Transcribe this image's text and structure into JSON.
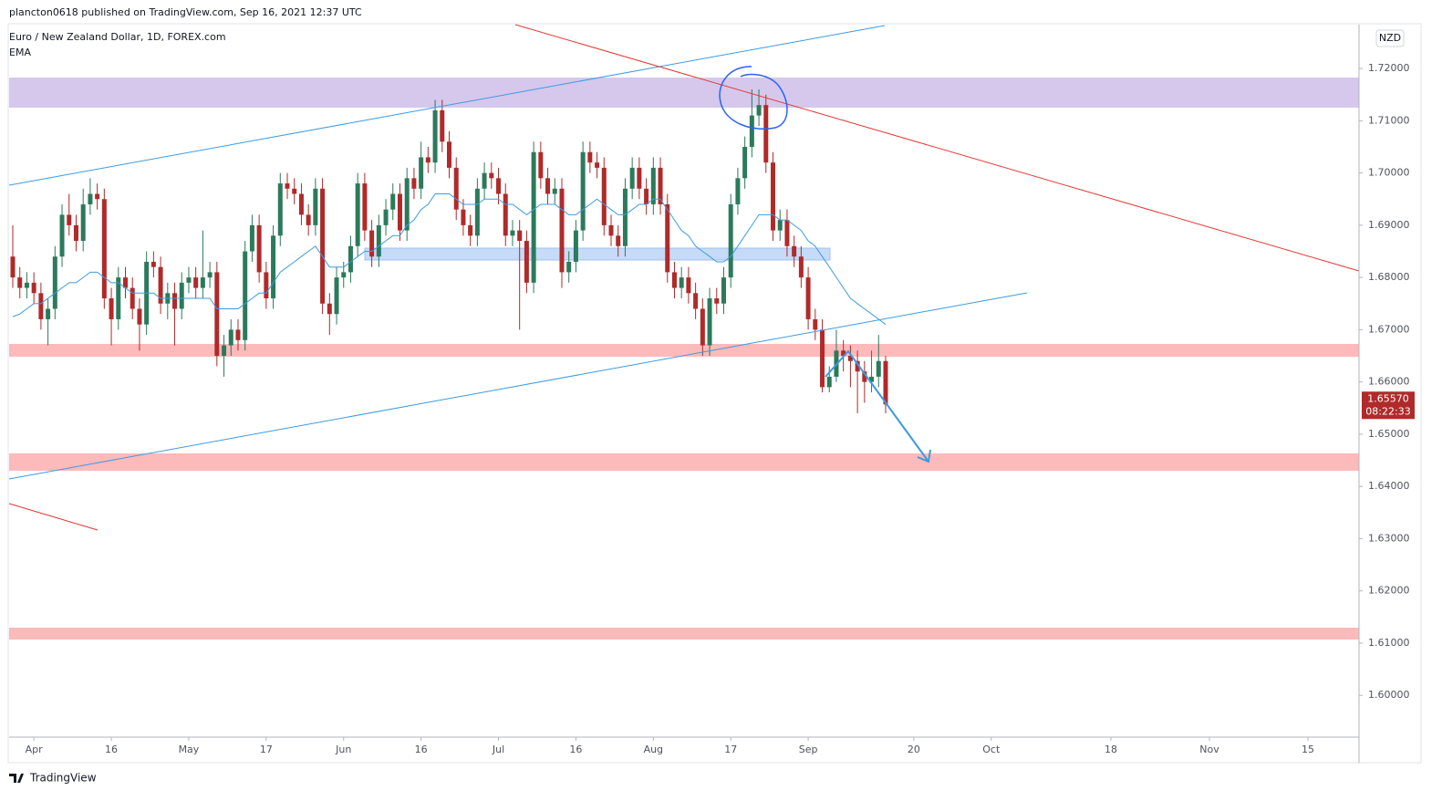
{
  "header": {
    "publisher": "plancton0618 published on TradingView.com, Sep 16, 2021 12:37 UTC"
  },
  "chart_data": {
    "type": "candlestick",
    "title": "Euro / New Zealand Dollar, 1D, FOREX.com",
    "indicator": "EMA",
    "currency": "NZD",
    "up_color": "#2b7a5c",
    "down_color": "#b02a2a",
    "ema_color": "#3d9be0",
    "open": [
      1.684,
      1.68,
      1.678,
      1.679,
      1.677,
      1.672,
      1.674,
      1.684,
      1.692,
      1.69,
      1.687,
      1.694,
      1.696,
      1.695,
      1.676,
      1.672,
      1.68,
      1.678,
      1.674,
      1.671,
      1.683,
      1.682,
      1.675,
      1.677,
      1.674,
      1.679,
      1.68,
      1.678,
      1.68,
      1.681,
      1.665,
      1.667,
      1.67,
      1.668,
      1.685,
      1.69,
      1.681,
      1.676,
      1.688,
      1.698,
      1.697,
      1.696,
      1.692,
      1.69,
      1.697,
      1.675,
      1.673,
      1.68,
      1.681,
      1.686,
      1.698,
      1.689,
      1.684,
      1.69,
      1.693,
      1.696,
      1.689,
      1.699,
      1.697,
      1.703,
      1.702,
      1.712,
      1.706,
      1.701,
      1.693,
      1.69,
      1.688,
      1.697,
      1.7,
      1.699,
      1.696,
      1.688,
      1.689,
      1.687,
      1.679,
      1.704,
      1.699,
      1.696,
      1.697,
      1.681,
      1.683,
      1.689,
      1.704,
      1.702,
      1.701,
      1.69,
      1.688,
      1.686,
      1.697,
      1.701,
      1.697,
      1.694,
      1.701,
      1.694,
      1.681,
      1.678,
      1.68,
      1.677,
      1.674,
      1.667,
      1.676,
      1.675,
      1.68,
      1.694,
      1.699,
      1.705,
      1.711,
      1.713,
      1.702,
      1.689,
      1.691,
      1.686,
      1.684,
      1.68,
      1.672,
      1.67,
      1.659,
      1.661,
      1.666,
      1.665,
      1.664,
      1.662,
      1.66,
      1.661,
      1.664
    ],
    "high": [
      1.69,
      1.682,
      1.681,
      1.681,
      1.679,
      1.676,
      1.686,
      1.694,
      1.696,
      1.692,
      1.697,
      1.699,
      1.698,
      1.697,
      1.678,
      1.682,
      1.682,
      1.68,
      1.676,
      1.685,
      1.685,
      1.684,
      1.679,
      1.679,
      1.681,
      1.682,
      1.682,
      1.689,
      1.683,
      1.683,
      1.669,
      1.672,
      1.672,
      1.687,
      1.692,
      1.692,
      1.683,
      1.69,
      1.7,
      1.7,
      1.699,
      1.698,
      1.694,
      1.699,
      1.699,
      1.677,
      1.682,
      1.683,
      1.688,
      1.7,
      1.7,
      1.691,
      1.692,
      1.695,
      1.698,
      1.698,
      1.701,
      1.701,
      1.706,
      1.705,
      1.714,
      1.714,
      1.708,
      1.703,
      1.695,
      1.692,
      1.699,
      1.702,
      1.702,
      1.701,
      1.698,
      1.691,
      1.691,
      1.689,
      1.706,
      1.706,
      1.701,
      1.699,
      1.699,
      1.685,
      1.691,
      1.706,
      1.706,
      1.704,
      1.703,
      1.692,
      1.69,
      1.699,
      1.703,
      1.703,
      1.699,
      1.703,
      1.703,
      1.696,
      1.683,
      1.682,
      1.682,
      1.679,
      1.676,
      1.678,
      1.678,
      1.682,
      1.696,
      1.701,
      1.707,
      1.716,
      1.716,
      1.715,
      1.704,
      1.693,
      1.693,
      1.688,
      1.686,
      1.682,
      1.674,
      1.672,
      1.663,
      1.67,
      1.668,
      1.667,
      1.666,
      1.664,
      1.666,
      1.669,
      1.665
    ],
    "low": [
      1.678,
      1.676,
      1.676,
      1.675,
      1.67,
      1.667,
      1.672,
      1.682,
      1.688,
      1.685,
      1.685,
      1.692,
      1.693,
      1.674,
      1.667,
      1.67,
      1.676,
      1.672,
      1.666,
      1.669,
      1.68,
      1.673,
      1.672,
      1.667,
      1.672,
      1.677,
      1.676,
      1.676,
      1.678,
      1.663,
      1.661,
      1.665,
      1.666,
      1.666,
      1.683,
      1.679,
      1.674,
      1.674,
      1.686,
      1.695,
      1.694,
      1.69,
      1.688,
      1.688,
      1.673,
      1.669,
      1.671,
      1.678,
      1.679,
      1.684,
      1.687,
      1.682,
      1.682,
      1.688,
      1.691,
      1.687,
      1.687,
      1.695,
      1.695,
      1.7,
      1.7,
      1.704,
      1.699,
      1.691,
      1.688,
      1.686,
      1.686,
      1.695,
      1.697,
      1.694,
      1.686,
      1.686,
      1.67,
      1.677,
      1.677,
      1.697,
      1.694,
      1.694,
      1.678,
      1.679,
      1.681,
      1.687,
      1.7,
      1.699,
      1.688,
      1.686,
      1.684,
      1.684,
      1.695,
      1.695,
      1.692,
      1.692,
      1.692,
      1.679,
      1.676,
      1.676,
      1.675,
      1.672,
      1.665,
      1.665,
      1.673,
      1.673,
      1.678,
      1.692,
      1.697,
      1.703,
      1.709,
      1.7,
      1.687,
      1.687,
      1.684,
      1.682,
      1.678,
      1.67,
      1.668,
      1.658,
      1.658,
      1.66,
      1.662,
      1.659,
      1.654,
      1.656,
      1.658,
      1.659,
      1.654
    ],
    "close": [
      1.68,
      1.678,
      1.679,
      1.677,
      1.672,
      1.674,
      1.684,
      1.692,
      1.69,
      1.687,
      1.694,
      1.696,
      1.695,
      1.676,
      1.672,
      1.68,
      1.678,
      1.674,
      1.671,
      1.683,
      1.682,
      1.675,
      1.677,
      1.674,
      1.679,
      1.68,
      1.678,
      1.68,
      1.681,
      1.665,
      1.667,
      1.67,
      1.668,
      1.685,
      1.69,
      1.681,
      1.676,
      1.688,
      1.698,
      1.697,
      1.696,
      1.692,
      1.69,
      1.697,
      1.675,
      1.673,
      1.68,
      1.681,
      1.686,
      1.698,
      1.689,
      1.684,
      1.69,
      1.693,
      1.696,
      1.689,
      1.699,
      1.697,
      1.703,
      1.702,
      1.712,
      1.706,
      1.701,
      1.693,
      1.69,
      1.688,
      1.697,
      1.7,
      1.699,
      1.696,
      1.688,
      1.689,
      1.687,
      1.679,
      1.704,
      1.699,
      1.696,
      1.697,
      1.681,
      1.683,
      1.689,
      1.704,
      1.702,
      1.701,
      1.69,
      1.688,
      1.686,
      1.697,
      1.701,
      1.697,
      1.694,
      1.701,
      1.694,
      1.681,
      1.678,
      1.68,
      1.677,
      1.674,
      1.667,
      1.676,
      1.675,
      1.68,
      1.694,
      1.699,
      1.705,
      1.711,
      1.713,
      1.702,
      1.689,
      1.691,
      1.686,
      1.684,
      1.68,
      1.672,
      1.67,
      1.659,
      1.661,
      1.666,
      1.665,
      1.664,
      1.662,
      1.66,
      1.661,
      1.664,
      1.6557
    ],
    "ema": [
      1.6725,
      1.673,
      1.674,
      1.675,
      1.675,
      1.676,
      1.677,
      1.678,
      1.679,
      1.679,
      1.68,
      1.681,
      1.681,
      1.68,
      1.679,
      1.679,
      1.678,
      1.677,
      1.677,
      1.677,
      1.677,
      1.676,
      1.676,
      1.676,
      1.676,
      1.676,
      1.676,
      1.676,
      1.676,
      1.674,
      1.674,
      1.674,
      1.674,
      1.675,
      1.676,
      1.677,
      1.677,
      1.679,
      1.681,
      1.682,
      1.683,
      1.684,
      1.685,
      1.686,
      1.684,
      1.682,
      1.682,
      1.682,
      1.683,
      1.684,
      1.685,
      1.685,
      1.686,
      1.687,
      1.688,
      1.688,
      1.69,
      1.691,
      1.693,
      1.694,
      1.696,
      1.696,
      1.696,
      1.695,
      1.694,
      1.694,
      1.694,
      1.695,
      1.695,
      1.695,
      1.694,
      1.694,
      1.693,
      1.692,
      1.693,
      1.694,
      1.694,
      1.694,
      1.693,
      1.692,
      1.692,
      1.693,
      1.694,
      1.695,
      1.694,
      1.693,
      1.692,
      1.692,
      1.693,
      1.694,
      1.694,
      1.695,
      1.695,
      1.693,
      1.691,
      1.689,
      1.688,
      1.686,
      1.685,
      1.684,
      1.683,
      1.683,
      1.684,
      1.686,
      1.688,
      1.69,
      1.692,
      1.692,
      1.692,
      1.691,
      1.691,
      1.69,
      1.689,
      1.687,
      1.686,
      1.684,
      1.682,
      1.68,
      1.678,
      1.676,
      1.675,
      1.674,
      1.673,
      1.672,
      1.671
    ],
    "xlim": [
      -0.52,
      191.25
    ],
    "xticks": [
      {
        "value": 3,
        "label": "Apr"
      },
      {
        "value": 14,
        "label": "16"
      },
      {
        "value": 25,
        "label": "May"
      },
      {
        "value": 36,
        "label": "17"
      },
      {
        "value": 47,
        "label": "Jun"
      },
      {
        "value": 58,
        "label": "16"
      },
      {
        "value": 69,
        "label": "Jul"
      },
      {
        "value": 80,
        "label": "16"
      },
      {
        "value": 91,
        "label": "Aug"
      },
      {
        "value": 102,
        "label": "17"
      },
      {
        "value": 113,
        "label": "Sep"
      },
      {
        "value": 128,
        "label": "20"
      },
      {
        "value": 139,
        "label": "Oct"
      },
      {
        "value": 156,
        "label": "18"
      },
      {
        "value": 170,
        "label": "Nov"
      },
      {
        "value": 184,
        "label": "15"
      }
    ],
    "ylim": [
      1.592,
      1.7284
    ],
    "yticks": [
      {
        "value": 1.6,
        "label": "1.60000"
      },
      {
        "value": 1.61,
        "label": "1.61000"
      },
      {
        "value": 1.62,
        "label": "1.62000"
      },
      {
        "value": 1.63,
        "label": "1.63000"
      },
      {
        "value": 1.64,
        "label": "1.64000"
      },
      {
        "value": 1.65,
        "label": "1.65000"
      },
      {
        "value": 1.66,
        "label": "1.66000"
      },
      {
        "value": 1.67,
        "label": "1.67000"
      },
      {
        "value": 1.68,
        "label": "1.68000"
      },
      {
        "value": 1.69,
        "label": "1.69000"
      },
      {
        "value": 1.7,
        "label": "1.70000"
      },
      {
        "value": 1.71,
        "label": "1.71000"
      },
      {
        "value": 1.72,
        "label": "1.72000"
      }
    ],
    "last_price": {
      "value": 1.6557,
      "label": "1.65570"
    },
    "countdown": "08:22:33"
  },
  "footer": {
    "brand": "TradingView"
  }
}
